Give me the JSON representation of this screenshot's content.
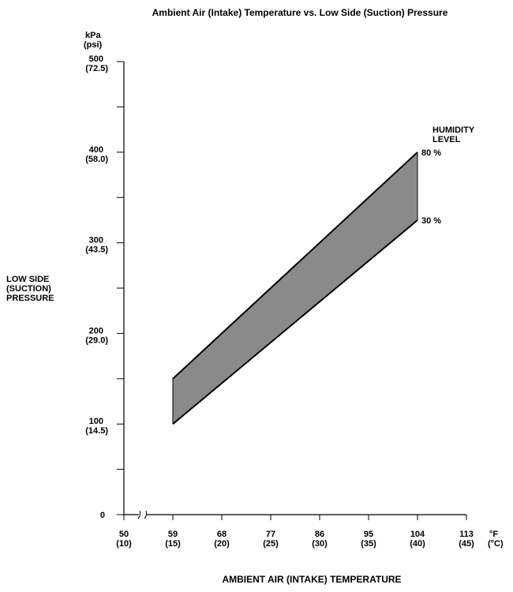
{
  "chart_data": {
    "type": "area",
    "title": "Ambient Air (Intake) Temperature vs. Low Side (Suction) Pressure",
    "xlabel": "AMBIENT AIR (INTAKE) TEMPERATURE",
    "ylabel": [
      "LOW SIDE",
      "(SUCTION)",
      "PRESSURE"
    ],
    "y_units": [
      "kPa",
      "(psi)"
    ],
    "x_units": [
      "°F",
      "(°C)"
    ],
    "xlim": [
      50,
      113
    ],
    "ylim": [
      0,
      500
    ],
    "x_axis_break": true,
    "grid": false,
    "x_ticks": [
      {
        "f": "50",
        "c": "(10)",
        "value": 50
      },
      {
        "f": "59",
        "c": "(15)",
        "value": 59
      },
      {
        "f": "68",
        "c": "(20)",
        "value": 68
      },
      {
        "f": "77",
        "c": "(25)",
        "value": 77
      },
      {
        "f": "86",
        "c": "(30)",
        "value": 86
      },
      {
        "f": "95",
        "c": "(35)",
        "value": 95
      },
      {
        "f": "104",
        "c": "(40)",
        "value": 104
      },
      {
        "f": "113",
        "c": "(45)",
        "value": 113
      }
    ],
    "y_ticks": [
      {
        "kpa": "0",
        "psi": "",
        "value": 0
      },
      {
        "kpa": "100",
        "psi": "(14.5)",
        "value": 100
      },
      {
        "kpa": "200",
        "psi": "(29.0)",
        "value": 200
      },
      {
        "kpa": "300",
        "psi": "(43.5)",
        "value": 300
      },
      {
        "kpa": "400",
        "psi": "(58.0)",
        "value": 400
      },
      {
        "kpa": "500",
        "psi": "(72.5)",
        "value": 500
      }
    ],
    "y_minor_ticks": [
      50,
      150,
      250,
      350,
      450
    ],
    "legend_title": [
      "HUMIDITY",
      "LEVEL"
    ],
    "series": [
      {
        "name": "80 %",
        "x": [
          59,
          104
        ],
        "y": [
          150,
          400
        ]
      },
      {
        "name": "30 %",
        "x": [
          59,
          104
        ],
        "y": [
          100,
          325
        ]
      }
    ],
    "band_color": "#8a8a8a"
  }
}
